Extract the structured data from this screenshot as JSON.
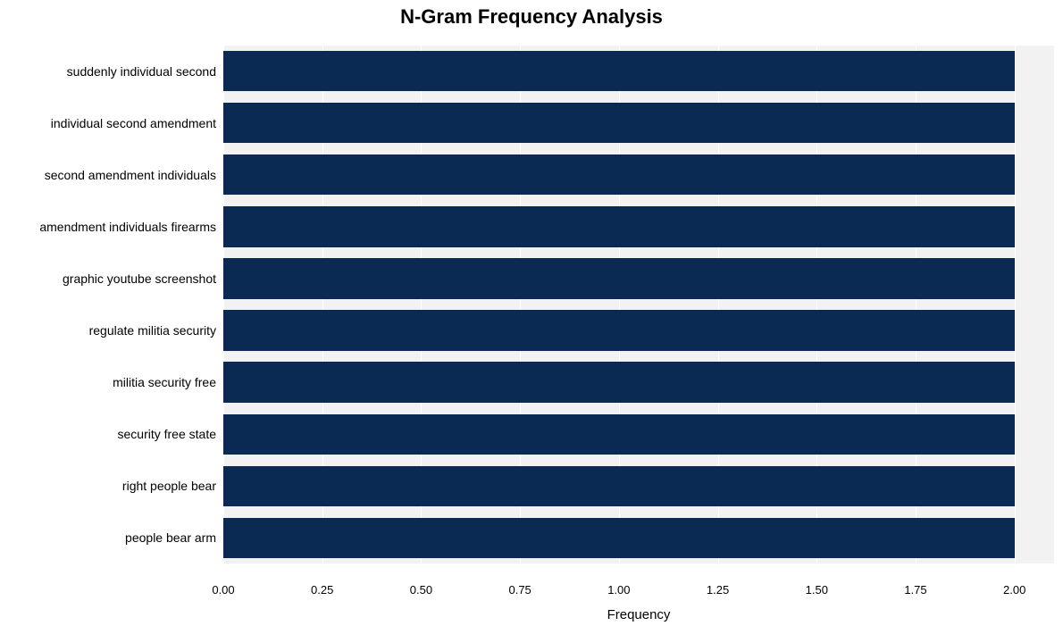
{
  "chart": {
    "type": "bar-horizontal",
    "title": "N-Gram Frequency Analysis",
    "title_fontsize": 22,
    "title_fontweight": 700,
    "xlabel": "Frequency",
    "xlabel_fontsize": 15,
    "ylabel_fontsize": 14,
    "xtick_fontsize": 13,
    "background_color": "#ffffff",
    "stripe_color": "#f2f2f2",
    "grid_color": "#ffffff",
    "bar_color": "#0a2a54",
    "xlim": [
      0.0,
      2.1
    ],
    "xtick_step": 0.25,
    "xticks": [
      "0.00",
      "0.25",
      "0.50",
      "0.75",
      "1.00",
      "1.25",
      "1.50",
      "1.75",
      "2.00"
    ],
    "bar_rel_height": 0.78,
    "categories": [
      "suddenly individual second",
      "individual second amendment",
      "second amendment individuals",
      "amendment individuals firearms",
      "graphic youtube screenshot",
      "regulate militia security",
      "militia security free",
      "security free state",
      "right people bear",
      "people bear arm"
    ],
    "values": [
      2,
      2,
      2,
      2,
      2,
      2,
      2,
      2,
      2,
      2
    ]
  }
}
